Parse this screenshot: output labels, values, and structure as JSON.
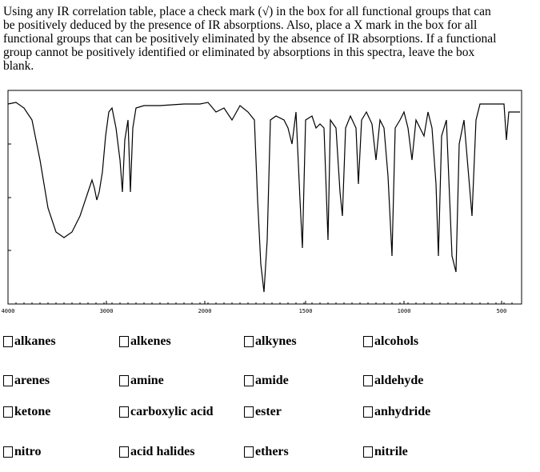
{
  "instructions": [
    "Using any IR correlation table, place a check mark (√) in the box for all functional groups that can",
    "be positively deduced by the presence of IR absorptions.  Also, place a X mark in the box for all",
    "functional groups that can be positively eliminated by the absence of IR absorptions.  If a functional",
    "group cannot be positively identified or eliminated by absorptions in this spectra, leave the box",
    "blank."
  ],
  "spectrum": {
    "xticks": [
      4000,
      3000,
      2000,
      1500,
      1000,
      500
    ]
  },
  "options": [
    [
      "alkanes",
      "alkenes",
      "alkynes",
      "alcohols"
    ],
    [
      "arenes",
      "amine",
      "amide",
      "aldehyde"
    ],
    [
      "ketone",
      "carboxylic acid",
      "ester",
      "anhydride"
    ],
    [
      "nitro",
      "acid halides",
      "ethers",
      "nitrile"
    ]
  ]
}
